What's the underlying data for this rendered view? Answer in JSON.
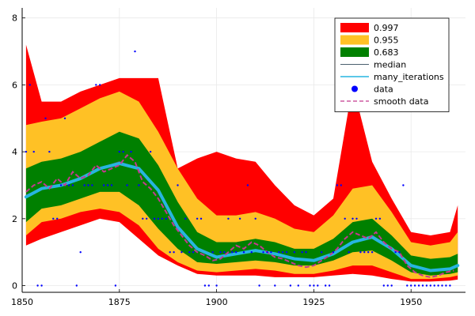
{
  "chart_data": {
    "type": "area",
    "title": "",
    "xlabel": "",
    "ylabel": "",
    "xlim": [
      1850,
      1964
    ],
    "ylim": [
      -0.2,
      8.3
    ],
    "x_ticks": [
      {
        "value": 1850,
        "label": "1850"
      },
      {
        "value": 1875,
        "label": "1875"
      },
      {
        "value": 1900,
        "label": "1900"
      },
      {
        "value": 1925,
        "label": "1925"
      },
      {
        "value": 1950,
        "label": "1950"
      }
    ],
    "y_ticks": [
      {
        "value": 0,
        "label": "0"
      },
      {
        "value": 2,
        "label": "2"
      },
      {
        "value": 4,
        "label": "4"
      },
      {
        "value": 6,
        "label": "6"
      },
      {
        "value": 8,
        "label": "8"
      }
    ],
    "grid": true,
    "legend_position": "top-right",
    "colors": {
      "band_997": "#ff0000",
      "band_955": "#ffc125",
      "band_683": "#008000",
      "median": "#4b5f6e",
      "many_iterations": "#27b5e0",
      "data": "#0000ff",
      "smooth_data": "#c3398f"
    },
    "legend": [
      {
        "label": "0.997",
        "kind": "band",
        "series": "band_997"
      },
      {
        "label": "0.955",
        "kind": "band",
        "series": "band_955"
      },
      {
        "label": "0.683",
        "kind": "band",
        "series": "band_683"
      },
      {
        "label": "median",
        "kind": "line",
        "series": "median"
      },
      {
        "label": "many_iterations",
        "kind": "line",
        "series": "many_iterations"
      },
      {
        "label": "data",
        "kind": "point",
        "series": "data"
      },
      {
        "label": "smooth data",
        "kind": "dash",
        "series": "smooth_data"
      }
    ],
    "bands": {
      "x": [
        1851,
        1855,
        1860,
        1865,
        1870,
        1875,
        1880,
        1885,
        1890,
        1895,
        1900,
        1905,
        1910,
        1915,
        1920,
        1925,
        1930,
        1935,
        1940,
        1945,
        1950,
        1955,
        1960,
        1962
      ],
      "band_997": {
        "upper": [
          7.2,
          5.5,
          5.5,
          5.8,
          6.0,
          6.2,
          6.2,
          6.2,
          3.5,
          3.8,
          4.0,
          3.8,
          3.7,
          3.0,
          2.4,
          2.1,
          2.6,
          6.0,
          3.7,
          2.6,
          1.6,
          1.5,
          1.6,
          2.4
        ],
        "lower": [
          1.2,
          1.4,
          1.6,
          1.8,
          2.0,
          1.9,
          1.4,
          0.9,
          0.6,
          0.35,
          0.3,
          0.3,
          0.3,
          0.25,
          0.25,
          0.25,
          0.3,
          0.35,
          0.3,
          0.2,
          0.12,
          0.12,
          0.15,
          0.18
        ]
      },
      "band_955": {
        "upper": [
          4.8,
          4.9,
          5.0,
          5.3,
          5.6,
          5.8,
          5.5,
          4.6,
          3.5,
          2.6,
          2.1,
          2.1,
          2.2,
          2.0,
          1.7,
          1.6,
          2.1,
          2.9,
          3.0,
          2.2,
          1.3,
          1.2,
          1.3,
          1.6
        ],
        "lower": [
          1.5,
          1.9,
          2.0,
          2.2,
          2.3,
          2.2,
          1.8,
          1.1,
          0.7,
          0.45,
          0.4,
          0.45,
          0.5,
          0.45,
          0.35,
          0.35,
          0.45,
          0.6,
          0.6,
          0.4,
          0.2,
          0.2,
          0.25,
          0.3
        ]
      },
      "band_683": {
        "upper": [
          3.5,
          3.7,
          3.8,
          4.0,
          4.3,
          4.6,
          4.4,
          3.6,
          2.5,
          1.6,
          1.3,
          1.3,
          1.4,
          1.3,
          1.1,
          1.1,
          1.4,
          1.9,
          2.0,
          1.5,
          0.9,
          0.8,
          0.85,
          0.95
        ],
        "lower": [
          1.9,
          2.3,
          2.4,
          2.6,
          2.8,
          2.8,
          2.4,
          1.7,
          1.1,
          0.7,
          0.65,
          0.7,
          0.75,
          0.7,
          0.6,
          0.6,
          0.75,
          1.0,
          1.05,
          0.75,
          0.4,
          0.3,
          0.35,
          0.4
        ]
      }
    },
    "series": [
      {
        "key": "median",
        "kind": "line",
        "x": [
          1851,
          1855,
          1860,
          1865,
          1870,
          1875,
          1880,
          1885,
          1890,
          1895,
          1900,
          1905,
          1910,
          1915,
          1920,
          1925,
          1930,
          1935,
          1940,
          1945,
          1950,
          1955,
          1960,
          1962
        ],
        "y": [
          2.7,
          2.9,
          3.0,
          3.2,
          3.5,
          3.7,
          3.5,
          2.9,
          1.8,
          1.1,
          0.85,
          0.95,
          1.05,
          0.95,
          0.8,
          0.75,
          0.95,
          1.3,
          1.5,
          1.1,
          0.6,
          0.48,
          0.5,
          0.6
        ]
      },
      {
        "key": "many_iterations",
        "kind": "line",
        "x": [
          1851,
          1855,
          1860,
          1865,
          1870,
          1875,
          1880,
          1885,
          1890,
          1895,
          1900,
          1905,
          1910,
          1915,
          1920,
          1925,
          1930,
          1935,
          1940,
          1945,
          1950,
          1955,
          1960,
          1962
        ],
        "y": [
          2.65,
          2.9,
          3.0,
          3.2,
          3.5,
          3.65,
          3.5,
          2.85,
          1.75,
          1.1,
          0.85,
          0.95,
          1.05,
          0.95,
          0.8,
          0.75,
          0.95,
          1.3,
          1.45,
          1.1,
          0.6,
          0.45,
          0.5,
          0.6
        ]
      },
      {
        "key": "smooth_data",
        "kind": "dash",
        "x": [
          1851,
          1853,
          1855,
          1857,
          1859,
          1861,
          1863,
          1865,
          1867,
          1869,
          1871,
          1873,
          1875,
          1877,
          1879,
          1881,
          1883,
          1885,
          1887,
          1889,
          1891,
          1893,
          1895,
          1897,
          1899,
          1901,
          1903,
          1905,
          1907,
          1909,
          1911,
          1913,
          1915,
          1917,
          1919,
          1921,
          1923,
          1925,
          1927,
          1929,
          1931,
          1933,
          1935,
          1937,
          1939,
          1941,
          1943,
          1945,
          1947,
          1949,
          1951,
          1953,
          1955,
          1957,
          1959,
          1961
        ],
        "y": [
          2.8,
          3.0,
          3.1,
          2.9,
          3.2,
          3.0,
          3.4,
          3.2,
          3.3,
          3.6,
          3.4,
          3.5,
          3.6,
          3.9,
          3.7,
          3.1,
          2.9,
          2.6,
          2.2,
          1.8,
          1.5,
          1.2,
          1.0,
          0.9,
          0.75,
          0.8,
          1.0,
          1.2,
          1.1,
          1.3,
          1.2,
          1.0,
          0.85,
          0.8,
          0.7,
          0.6,
          0.55,
          0.6,
          0.75,
          0.9,
          1.1,
          1.4,
          1.6,
          1.5,
          1.4,
          1.6,
          1.3,
          1.1,
          1.0,
          0.6,
          0.4,
          0.3,
          0.25,
          0.3,
          0.4,
          0.45
        ]
      },
      {
        "key": "data",
        "kind": "scatter",
        "points": [
          [
            1851,
            4
          ],
          [
            1852,
            6
          ],
          [
            1853,
            4
          ],
          [
            1854,
            0
          ],
          [
            1855,
            0
          ],
          [
            1856,
            5
          ],
          [
            1857,
            4
          ],
          [
            1858,
            2
          ],
          [
            1859,
            2
          ],
          [
            1860,
            3
          ],
          [
            1861,
            5
          ],
          [
            1862,
            3
          ],
          [
            1863,
            3
          ],
          [
            1864,
            0
          ],
          [
            1865,
            1
          ],
          [
            1866,
            3
          ],
          [
            1867,
            3
          ],
          [
            1868,
            3
          ],
          [
            1869,
            6
          ],
          [
            1870,
            6
          ],
          [
            1871,
            3
          ],
          [
            1872,
            3
          ],
          [
            1873,
            3
          ],
          [
            1874,
            0
          ],
          [
            1875,
            4
          ],
          [
            1876,
            4
          ],
          [
            1877,
            3
          ],
          [
            1878,
            4
          ],
          [
            1879,
            7
          ],
          [
            1880,
            3
          ],
          [
            1881,
            2
          ],
          [
            1882,
            2
          ],
          [
            1883,
            4
          ],
          [
            1884,
            2
          ],
          [
            1885,
            2
          ],
          [
            1886,
            2
          ],
          [
            1887,
            2
          ],
          [
            1888,
            1
          ],
          [
            1889,
            1
          ],
          [
            1890,
            3
          ],
          [
            1891,
            1
          ],
          [
            1892,
            2
          ],
          [
            1893,
            1
          ],
          [
            1894,
            1
          ],
          [
            1895,
            2
          ],
          [
            1896,
            2
          ],
          [
            1897,
            0
          ],
          [
            1898,
            0
          ],
          [
            1899,
            1
          ],
          [
            1900,
            0
          ],
          [
            1901,
            1
          ],
          [
            1902,
            1
          ],
          [
            1903,
            2
          ],
          [
            1904,
            1
          ],
          [
            1905,
            1
          ],
          [
            1906,
            2
          ],
          [
            1907,
            1
          ],
          [
            1908,
            3
          ],
          [
            1909,
            1
          ],
          [
            1910,
            2
          ],
          [
            1911,
            0
          ],
          [
            1912,
            1
          ],
          [
            1913,
            1
          ],
          [
            1914,
            1
          ],
          [
            1915,
            0
          ],
          [
            1916,
            1
          ],
          [
            1917,
            1
          ],
          [
            1918,
            1
          ],
          [
            1919,
            0
          ],
          [
            1920,
            1
          ],
          [
            1921,
            0
          ],
          [
            1922,
            1
          ],
          [
            1923,
            1
          ],
          [
            1924,
            0
          ],
          [
            1925,
            0
          ],
          [
            1926,
            0
          ],
          [
            1927,
            1
          ],
          [
            1928,
            0
          ],
          [
            1929,
            0
          ],
          [
            1930,
            1
          ],
          [
            1931,
            3
          ],
          [
            1932,
            3
          ],
          [
            1933,
            2
          ],
          [
            1934,
            1
          ],
          [
            1935,
            2
          ],
          [
            1936,
            2
          ],
          [
            1937,
            1
          ],
          [
            1938,
            1
          ],
          [
            1939,
            1
          ],
          [
            1940,
            1
          ],
          [
            1941,
            2
          ],
          [
            1942,
            2
          ],
          [
            1943,
            0
          ],
          [
            1944,
            0
          ],
          [
            1945,
            0
          ],
          [
            1946,
            1
          ],
          [
            1947,
            1
          ],
          [
            1948,
            3
          ],
          [
            1949,
            0
          ],
          [
            1950,
            0
          ],
          [
            1951,
            0
          ],
          [
            1952,
            0
          ],
          [
            1953,
            0
          ],
          [
            1954,
            0
          ],
          [
            1955,
            0
          ],
          [
            1956,
            0
          ],
          [
            1957,
            0
          ],
          [
            1958,
            0
          ],
          [
            1959,
            0
          ],
          [
            1960,
            0
          ]
        ]
      }
    ]
  }
}
